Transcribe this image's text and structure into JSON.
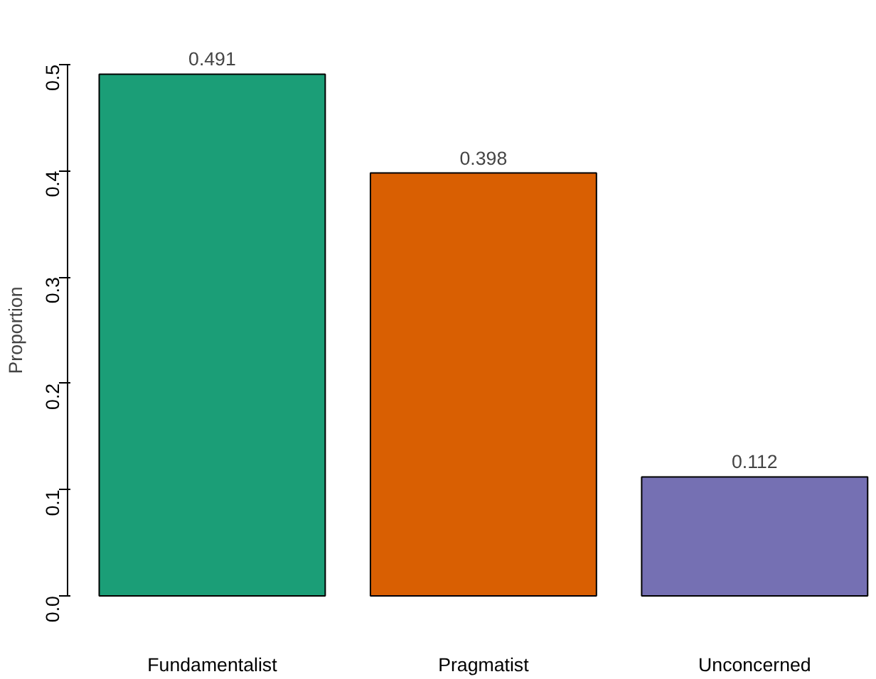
{
  "chart_data": {
    "type": "bar",
    "ylabel": "Proportion",
    "categories": [
      "Fundamentalist",
      "Pragmatist",
      "Unconcerned"
    ],
    "values": [
      0.491,
      0.398,
      0.112
    ],
    "colors": [
      "#1b9e77",
      "#d95f02",
      "#7570b3"
    ],
    "ylim": [
      0,
      0.5
    ],
    "yticks": [
      {
        "value": 0,
        "label": "0.0"
      },
      {
        "value": 0.1,
        "label": "0.1"
      },
      {
        "value": 0.2,
        "label": "0.2"
      },
      {
        "value": 0.3,
        "label": "0.3"
      },
      {
        "value": 0.4,
        "label": "0.4"
      },
      {
        "value": 0.5,
        "label": "0.5"
      }
    ],
    "data_labels": true,
    "grid": false
  }
}
